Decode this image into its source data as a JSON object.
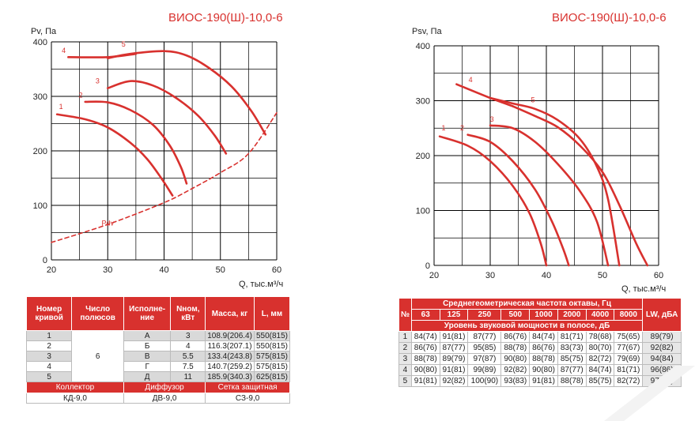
{
  "chart_data": [
    {
      "type": "line",
      "title": "ВИОС-190(Ш)-10,0-6",
      "ylabel": "Pv, Па",
      "xlabel": "Q, тыс.м³/ч",
      "xlim": [
        20,
        60
      ],
      "ylim": [
        0,
        400
      ],
      "xticks": [
        "20",
        "30",
        "40",
        "50",
        "60"
      ],
      "yticks": [
        "0",
        "100",
        "200",
        "300",
        "400"
      ],
      "grid": true,
      "series": [
        {
          "name": "1",
          "points": [
            [
              21,
              267
            ],
            [
              26,
              258
            ],
            [
              30,
              243
            ],
            [
              34,
              215
            ],
            [
              37,
              185
            ],
            [
              39.5,
              150
            ],
            [
              41.5,
              118
            ]
          ]
        },
        {
          "name": "2",
          "points": [
            [
              26,
              290
            ],
            [
              30,
              289
            ],
            [
              34,
              275
            ],
            [
              38,
              248
            ],
            [
              41,
              210
            ],
            [
              43,
              170
            ],
            [
              44,
              140
            ]
          ]
        },
        {
          "name": "3",
          "points": [
            [
              30,
              315
            ],
            [
              34,
              328
            ],
            [
              38,
              320
            ],
            [
              42,
              298
            ],
            [
              46,
              265
            ],
            [
              49,
              228
            ],
            [
              51,
              195
            ]
          ]
        },
        {
          "name": "4",
          "points": [
            [
              23,
              372
            ],
            [
              30,
              372
            ],
            [
              35,
              378
            ]
          ]
        },
        {
          "name": "5",
          "points": [
            [
              30,
              370
            ],
            [
              34,
              378
            ],
            [
              40,
              383
            ],
            [
              44,
              375
            ],
            [
              48,
              352
            ],
            [
              52,
              318
            ],
            [
              55.5,
              273
            ],
            [
              58,
              230
            ]
          ]
        },
        {
          "name": "Pdv",
          "dashed": true,
          "points": [
            [
              20,
              32
            ],
            [
              30,
              65
            ],
            [
              40,
              105
            ],
            [
              45,
              131
            ],
            [
              50,
              160
            ],
            [
              55,
              195
            ],
            [
              60,
              270
            ]
          ]
        }
      ]
    },
    {
      "type": "line",
      "title": "ВИОС-190(Ш)-10,0-6",
      "ylabel": "Psv, Па",
      "xlabel": "Q, тыс.м³/ч",
      "xlim": [
        20,
        60
      ],
      "ylim": [
        0,
        400
      ],
      "xticks": [
        "20",
        "30",
        "40",
        "50",
        "60"
      ],
      "yticks": [
        "0",
        "100",
        "200",
        "300",
        "400"
      ],
      "grid": true,
      "series": [
        {
          "name": "1",
          "points": [
            [
              21,
              235
            ],
            [
              26,
              218
            ],
            [
              30,
              190
            ],
            [
              34,
              145
            ],
            [
              37,
              95
            ],
            [
              39,
              40
            ],
            [
              40,
              0
            ]
          ]
        },
        {
          "name": "2",
          "points": [
            [
              26,
              238
            ],
            [
              30,
              225
            ],
            [
              34,
              190
            ],
            [
              38,
              138
            ],
            [
              41,
              80
            ],
            [
              43,
              30
            ],
            [
              44,
              0
            ]
          ]
        },
        {
          "name": "3",
          "points": [
            [
              30,
              255
            ],
            [
              34,
              250
            ],
            [
              38,
              225
            ],
            [
              42,
              185
            ],
            [
              46,
              135
            ],
            [
              49,
              80
            ],
            [
              51,
              0
            ]
          ]
        },
        {
          "name": "4",
          "points": [
            [
              24,
              330
            ],
            [
              30,
              305
            ],
            [
              34,
              290
            ]
          ]
        },
        {
          "name": "5",
          "points": [
            [
              30,
              305
            ],
            [
              34,
              295
            ],
            [
              38,
              285
            ],
            [
              42,
              265
            ],
            [
              46,
              230
            ],
            [
              49,
              180
            ],
            [
              51,
              120
            ],
            [
              53,
              0
            ]
          ]
        },
        {
          "name": "",
          "points": [
            [
              34,
              290
            ],
            [
              38,
              272
            ],
            [
              42,
              252
            ],
            [
              46,
              218
            ],
            [
              50,
              170
            ],
            [
              53,
              110
            ],
            [
              56,
              40
            ],
            [
              58,
              0
            ]
          ]
        }
      ]
    }
  ],
  "curve_labels_left": [
    "1",
    "2",
    "3",
    "4",
    "5",
    "Pdv"
  ],
  "curve_labels_right": [
    "1",
    "2",
    "3",
    "4",
    "5"
  ],
  "table1": {
    "headers": [
      "Номер кривой",
      "Число полюсов",
      "Исполне-ние",
      "Nном, кВт",
      "Масса, кг",
      "L, мм"
    ],
    "poles": "6",
    "rows": [
      [
        "1",
        "А",
        "3",
        "108.9(206.4)",
        "550(815)"
      ],
      [
        "2",
        "Б",
        "4",
        "116.3(207.1)",
        "550(815)"
      ],
      [
        "3",
        "В",
        "5.5",
        "133.4(243.8)",
        "575(815)"
      ],
      [
        "4",
        "Г",
        "7.5",
        "140.7(259.2)",
        "575(815)"
      ],
      [
        "5",
        "Д",
        "11",
        "185.9(340.3)",
        "625(815)"
      ]
    ],
    "acc_headers": [
      "Коллектор",
      "Диффузор",
      "Сетка защитная"
    ],
    "acc_values": [
      "КД-9,0",
      "ДВ-9,0",
      "СЗ-9,0"
    ]
  },
  "table2": {
    "no_header": "№",
    "freq_header": "Среднегеометрическая частота октавы, Гц",
    "freqs": [
      "63",
      "125",
      "250",
      "500",
      "1000",
      "2000",
      "4000",
      "8000"
    ],
    "lw_header": "LW, дБА",
    "level_header": "Уровень звуковой мощности в полосе, дБ",
    "rows": [
      [
        "1",
        "84(74)",
        "91(81)",
        "87(77)",
        "86(76)",
        "84(74)",
        "81(71)",
        "78(68)",
        "75(65)",
        "89(79)"
      ],
      [
        "2",
        "86(76)",
        "87(77)",
        "95(85)",
        "88(78)",
        "86(76)",
        "83(73)",
        "80(70)",
        "77(67)",
        "92(82)"
      ],
      [
        "3",
        "88(78)",
        "89(79)",
        "97(87)",
        "90(80)",
        "88(78)",
        "85(75)",
        "82(72)",
        "79(69)",
        "94(84)"
      ],
      [
        "4",
        "90(80)",
        "91(81)",
        "99(89)",
        "92(82)",
        "90(80)",
        "87(77)",
        "84(74)",
        "81(71)",
        "96(86)"
      ],
      [
        "5",
        "91(81)",
        "92(82)",
        "100(90)",
        "93(83)",
        "91(81)",
        "88(78)",
        "85(75)",
        "82(72)",
        "97(87)"
      ]
    ]
  }
}
